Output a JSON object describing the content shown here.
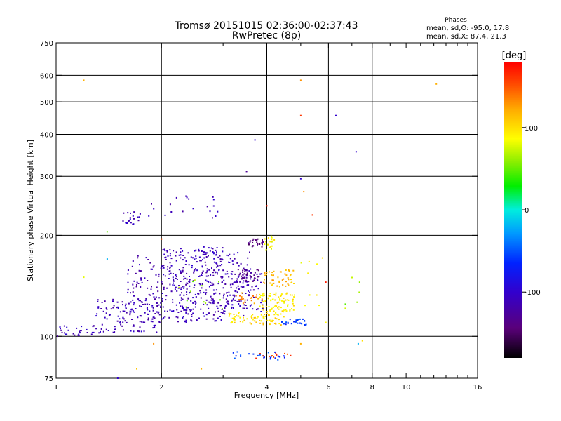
{
  "chart_data": {
    "type": "scatter",
    "title": "Tromsø 20151015 02:36:00-02:37:43",
    "subtitle": "RwPretec (8p)",
    "xlabel": "Frequency [MHz]",
    "ylabel": "Stationary phase Virtual Height [km]",
    "x_scale": "log2",
    "y_scale": "log",
    "xlim": [
      1,
      16
    ],
    "ylim": [
      75,
      750
    ],
    "x_ticks": [
      {
        "value": 1,
        "label": "1",
        "major": true
      },
      {
        "value": 2,
        "label": "2",
        "major": true
      },
      {
        "value": 4,
        "label": "4",
        "major": true
      },
      {
        "value": 6,
        "label": "6",
        "major": true
      },
      {
        "value": 8,
        "label": "8",
        "major": true
      },
      {
        "value": 10,
        "label": "10",
        "major": true
      },
      {
        "value": 16,
        "label": "16",
        "major": false
      }
    ],
    "x_minor_ticks": [
      3,
      5,
      7,
      9,
      11,
      12,
      13,
      14,
      15
    ],
    "y_ticks": [
      {
        "value": 75,
        "label": "75"
      },
      {
        "value": 100,
        "label": "100"
      },
      {
        "value": 200,
        "label": "200"
      },
      {
        "value": 300,
        "label": "300"
      },
      {
        "value": 400,
        "label": "400"
      },
      {
        "value": 500,
        "label": "500"
      },
      {
        "value": 600,
        "label": "600"
      },
      {
        "value": 750,
        "label": "750"
      }
    ],
    "grid_x": [
      2,
      4,
      6,
      8
    ],
    "grid_y": [
      100,
      200,
      300,
      400,
      500,
      600
    ],
    "stats": {
      "header": "Phases",
      "line1": "mean, sd,O: -95.0, 17.8",
      "line2": "mean, sd,X:  87.4, 21.3"
    },
    "colorbar": {
      "label": "[deg]",
      "range": [
        -180,
        180
      ],
      "ticks": [
        {
          "value": 100,
          "label": "100"
        },
        {
          "value": 0,
          "label": "0"
        },
        {
          "value": -100,
          "label": "-100"
        }
      ]
    },
    "clusters": [
      {
        "fmin": 1.0,
        "fmax": 1.3,
        "hmin": 100,
        "hmax": 108,
        "phase": -110,
        "n": 30
      },
      {
        "fmin": 1.3,
        "fmax": 2.0,
        "hmin": 102,
        "hmax": 130,
        "phase": -110,
        "n": 120
      },
      {
        "fmin": 1.6,
        "fmax": 2.4,
        "hmin": 110,
        "hmax": 175,
        "phase": -115,
        "n": 150
      },
      {
        "fmin": 2.0,
        "fmax": 3.0,
        "hmin": 110,
        "hmax": 185,
        "phase": -110,
        "n": 200
      },
      {
        "fmin": 2.4,
        "fmax": 3.6,
        "hmin": 115,
        "hmax": 180,
        "phase": -112,
        "n": 150
      },
      {
        "fmin": 3.0,
        "fmax": 3.9,
        "hmin": 118,
        "hmax": 160,
        "phase": -112,
        "n": 80
      },
      {
        "fmin": 1.55,
        "fmax": 1.75,
        "hmin": 215,
        "hmax": 235,
        "phase": -110,
        "n": 20
      },
      {
        "fmin": 1.8,
        "fmax": 2.9,
        "hmin": 225,
        "hmax": 265,
        "phase": -110,
        "n": 20
      },
      {
        "fmin": 3.3,
        "fmax": 3.8,
        "hmin": 145,
        "hmax": 160,
        "phase": -135,
        "n": 40
      },
      {
        "fmin": 3.5,
        "fmax": 3.9,
        "hmin": 185,
        "hmax": 195,
        "phase": -140,
        "n": 25
      },
      {
        "fmin": 3.2,
        "fmax": 4.0,
        "hmin": 125,
        "hmax": 135,
        "phase": 130,
        "n": 25
      },
      {
        "fmin": 3.1,
        "fmax": 4.5,
        "hmin": 108,
        "hmax": 118,
        "phase": 100,
        "n": 80
      },
      {
        "fmin": 3.8,
        "fmax": 4.8,
        "hmin": 118,
        "hmax": 135,
        "phase": 95,
        "n": 80
      },
      {
        "fmin": 3.9,
        "fmax": 4.8,
        "hmin": 140,
        "hmax": 158,
        "phase": 115,
        "n": 50
      },
      {
        "fmin": 3.9,
        "fmax": 4.2,
        "hmin": 180,
        "hmax": 200,
        "phase": 85,
        "n": 20
      },
      {
        "fmin": 4.4,
        "fmax": 5.2,
        "hmin": 108,
        "hmax": 113,
        "phase": -60,
        "n": 25
      },
      {
        "fmin": 3.2,
        "fmax": 4.6,
        "hmin": 85,
        "hmax": 90,
        "phase": -60,
        "n": 25
      },
      {
        "fmin": 3.7,
        "fmax": 4.7,
        "hmin": 86,
        "hmax": 89,
        "phase": 155,
        "n": 12
      },
      {
        "fmin": 2.2,
        "fmax": 3.0,
        "hmin": 120,
        "hmax": 150,
        "phase": 60,
        "n": 12
      },
      {
        "fmin": 5.0,
        "fmax": 6.0,
        "hmin": 110,
        "hmax": 180,
        "phase": 90,
        "n": 10
      },
      {
        "fmin": 6.5,
        "fmax": 7.6,
        "hmin": 118,
        "hmax": 150,
        "phase": 60,
        "n": 6
      }
    ],
    "scattered_points": [
      {
        "x": 1.2,
        "y": 580,
        "phase": 120
      },
      {
        "x": 5.0,
        "y": 580,
        "phase": 130
      },
      {
        "x": 12.2,
        "y": 565,
        "phase": 120
      },
      {
        "x": 5.0,
        "y": 455,
        "phase": 160
      },
      {
        "x": 6.3,
        "y": 455,
        "phase": -100
      },
      {
        "x": 3.7,
        "y": 385,
        "phase": -100
      },
      {
        "x": 7.2,
        "y": 355,
        "phase": -100
      },
      {
        "x": 3.5,
        "y": 310,
        "phase": -130
      },
      {
        "x": 5.0,
        "y": 295,
        "phase": -100
      },
      {
        "x": 5.1,
        "y": 270,
        "phase": 130
      },
      {
        "x": 4.0,
        "y": 245,
        "phase": 170
      },
      {
        "x": 5.4,
        "y": 230,
        "phase": 160
      },
      {
        "x": 1.4,
        "y": 205,
        "phase": 50
      },
      {
        "x": 1.4,
        "y": 170,
        "phase": -20
      },
      {
        "x": 2.0,
        "y": 195,
        "phase": 150
      },
      {
        "x": 1.2,
        "y": 150,
        "phase": 80
      },
      {
        "x": 5.9,
        "y": 145,
        "phase": 170
      },
      {
        "x": 5.9,
        "y": 110,
        "phase": 90
      },
      {
        "x": 7.3,
        "y": 95,
        "phase": -20
      },
      {
        "x": 7.5,
        "y": 97,
        "phase": 100
      },
      {
        "x": 1.7,
        "y": 80,
        "phase": 110
      },
      {
        "x": 2.6,
        "y": 80,
        "phase": 120
      },
      {
        "x": 1.9,
        "y": 95,
        "phase": 130
      },
      {
        "x": 5.0,
        "y": 95,
        "phase": 120
      },
      {
        "x": 1.5,
        "y": 75,
        "phase": -100
      }
    ]
  }
}
